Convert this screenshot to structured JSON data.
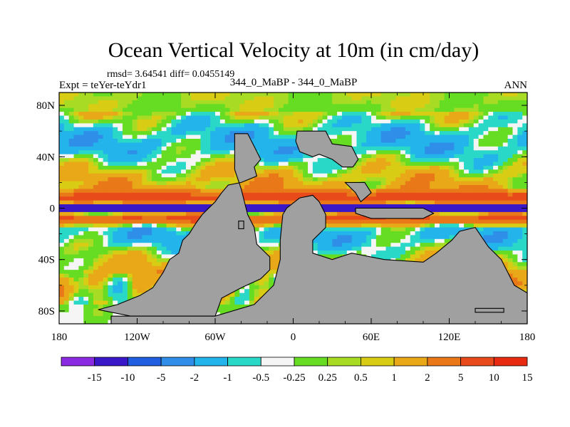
{
  "chart_data": {
    "type": "heatmap",
    "title": "Ocean Vertical Velocity at 10m (in cm/day)",
    "stats_text": "rmsd= 3.64541 diff= 0.0455149",
    "experiment_text": "Expt = teYer-teYdr1",
    "case_text": "344_0_MaBP - 344_0_MaBP",
    "season_text": "ANN",
    "x_axis": {
      "range": [
        -180,
        180
      ],
      "ticks": [
        -180,
        -120,
        -60,
        0,
        60,
        120,
        180
      ],
      "tick_labels": [
        "180",
        "120W",
        "60W",
        "0",
        "60E",
        "120E",
        "180"
      ]
    },
    "y_axis": {
      "range": [
        -90,
        90
      ],
      "ticks": [
        80,
        40,
        0,
        -40,
        -80
      ],
      "tick_labels": [
        "80N",
        "40N",
        "0",
        "40S",
        "80S"
      ]
    },
    "colorbar": {
      "boundaries": [
        "-15",
        "-10",
        "-5",
        "-2",
        "-1",
        "-0.5",
        "-0.25",
        "0.25",
        "0.5",
        "1",
        "2",
        "5",
        "10",
        "15"
      ],
      "colors": [
        "#8a2be2",
        "#3a18c8",
        "#1f5fe0",
        "#2f8fe8",
        "#22b4ea",
        "#2ad8c8",
        "#f5f5f5",
        "#66dd22",
        "#a8dc24",
        "#d8cc14",
        "#e8a818",
        "#e87818",
        "#e84a1a",
        "#e82a10"
      ]
    },
    "land_color": "#a0a0a0",
    "land_regions": [
      {
        "name": "north-america",
        "lon_lat": [
          [
            -45,
            58
          ],
          [
            -35,
            58
          ],
          [
            -30,
            48
          ],
          [
            -25,
            38
          ],
          [
            -30,
            32
          ],
          [
            -28,
            25
          ],
          [
            -40,
            20
          ],
          [
            -50,
            18
          ],
          [
            -55,
            12
          ],
          [
            -60,
            5
          ],
          [
            -70,
            -5
          ],
          [
            -75,
            -12
          ],
          [
            -80,
            -20
          ],
          [
            -85,
            -25
          ],
          [
            -88,
            -35
          ],
          [
            -95,
            -40
          ],
          [
            -100,
            -50
          ],
          [
            -108,
            -62
          ],
          [
            -118,
            -68
          ],
          [
            -135,
            -75
          ],
          [
            -150,
            -79
          ],
          [
            -125,
            -84
          ],
          [
            -60,
            -84
          ],
          [
            -55,
            -70
          ],
          [
            -40,
            -62
          ],
          [
            -25,
            -55
          ],
          [
            -18,
            -48
          ],
          [
            -18,
            -38
          ],
          [
            -28,
            -28
          ],
          [
            -30,
            -15
          ],
          [
            -35,
            -5
          ],
          [
            -40,
            15
          ],
          [
            -45,
            30
          ]
        ]
      },
      {
        "name": "africa-antarctica",
        "lon_lat": [
          [
            -10,
            -25
          ],
          [
            -8,
            -5
          ],
          [
            -5,
            0
          ],
          [
            5,
            8
          ],
          [
            15,
            10
          ],
          [
            20,
            5
          ],
          [
            25,
            -5
          ],
          [
            25,
            -15
          ],
          [
            15,
            -25
          ],
          [
            15,
            -35
          ],
          [
            30,
            -40
          ],
          [
            45,
            -35
          ],
          [
            70,
            -40
          ],
          [
            100,
            -42
          ],
          [
            110,
            -35
          ],
          [
            122,
            -25
          ],
          [
            128,
            -18
          ],
          [
            140,
            -15
          ],
          [
            150,
            -30
          ],
          [
            160,
            -40
          ],
          [
            170,
            -60
          ],
          [
            180,
            -66
          ],
          [
            180,
            -90
          ],
          [
            -140,
            -90
          ],
          [
            -140,
            -84
          ],
          [
            -60,
            -84
          ],
          [
            -30,
            -75
          ],
          [
            -15,
            -60
          ],
          [
            -10,
            -40
          ]
        ]
      },
      {
        "name": "eurasia-north",
        "lon_lat": [
          [
            3,
            60
          ],
          [
            25,
            60
          ],
          [
            30,
            50
          ],
          [
            45,
            48
          ],
          [
            50,
            38
          ],
          [
            46,
            32
          ],
          [
            38,
            32
          ],
          [
            30,
            38
          ],
          [
            20,
            42
          ],
          [
            15,
            40
          ],
          [
            5,
            44
          ],
          [
            2,
            52
          ]
        ]
      },
      {
        "name": "east-asia",
        "lon_lat": [
          [
            40,
            20
          ],
          [
            55,
            20
          ],
          [
            60,
            12
          ],
          [
            52,
            5
          ],
          [
            48,
            12
          ]
        ]
      },
      {
        "name": "equatorial-island",
        "lon_lat": [
          [
            48,
            0
          ],
          [
            100,
            0
          ],
          [
            108,
            -4
          ],
          [
            100,
            -8
          ],
          [
            60,
            -8
          ],
          [
            48,
            -4
          ]
        ]
      },
      {
        "name": "small-island-west",
        "lon_lat": [
          [
            -42,
            -10
          ],
          [
            -38,
            -10
          ],
          [
            -38,
            -16
          ],
          [
            -42,
            -16
          ]
        ]
      },
      {
        "name": "south-pacific-islet",
        "lon_lat": [
          [
            140,
            -78
          ],
          [
            162,
            -78
          ],
          [
            162,
            -81
          ],
          [
            140,
            -81
          ]
        ]
      }
    ]
  }
}
